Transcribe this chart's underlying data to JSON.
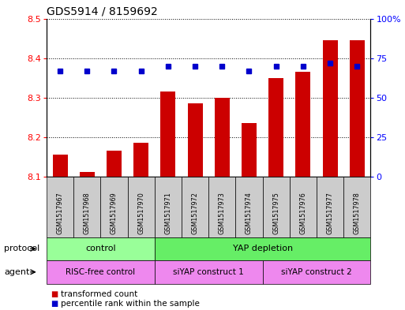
{
  "title": "GDS5914 / 8159692",
  "samples": [
    "GSM1517967",
    "GSM1517968",
    "GSM1517969",
    "GSM1517970",
    "GSM1517971",
    "GSM1517972",
    "GSM1517973",
    "GSM1517974",
    "GSM1517975",
    "GSM1517976",
    "GSM1517977",
    "GSM1517978"
  ],
  "transformed_counts": [
    8.155,
    8.112,
    8.165,
    8.185,
    8.315,
    8.285,
    8.3,
    8.235,
    8.35,
    8.365,
    8.445,
    8.445
  ],
  "percentile_ranks": [
    67,
    67,
    67,
    67,
    70,
    70,
    70,
    67,
    70,
    70,
    72,
    70
  ],
  "ylim_left": [
    8.1,
    8.5
  ],
  "ylim_right": [
    0,
    100
  ],
  "yticks_left": [
    8.1,
    8.2,
    8.3,
    8.4,
    8.5
  ],
  "yticks_right": [
    0,
    25,
    50,
    75,
    100
  ],
  "ytick_labels_right": [
    "0",
    "25",
    "50",
    "75",
    "100%"
  ],
  "bar_color": "#cc0000",
  "dot_color": "#0000cc",
  "bar_bottom": 8.1,
  "protocol_groups": [
    {
      "label": "control",
      "start": 0,
      "end": 3,
      "color": "#99ff99"
    },
    {
      "label": "YAP depletion",
      "start": 4,
      "end": 11,
      "color": "#66ee66"
    }
  ],
  "agent_groups": [
    {
      "label": "RISC-free control",
      "start": 0,
      "end": 3,
      "color": "#ee88ee"
    },
    {
      "label": "siYAP construct 1",
      "start": 4,
      "end": 7,
      "color": "#ee88ee"
    },
    {
      "label": "siYAP construct 2",
      "start": 8,
      "end": 11,
      "color": "#ee88ee"
    }
  ],
  "legend_items": [
    {
      "label": "transformed count",
      "color": "#cc0000"
    },
    {
      "label": "percentile rank within the sample",
      "color": "#0000cc"
    }
  ],
  "protocol_label": "protocol",
  "agent_label": "agent",
  "background_color": "#ffffff",
  "tick_label_area_color": "#cccccc"
}
